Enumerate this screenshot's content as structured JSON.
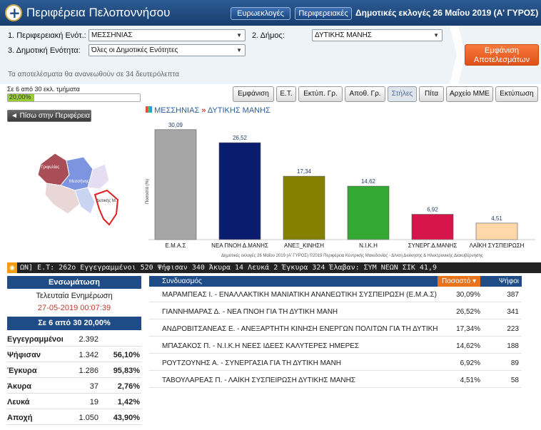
{
  "header": {
    "region_title": "Περιφέρεια Πελοποννήσου",
    "btn_euro": "Ευρωεκλογές",
    "btn_regional": "Περιφερειακές",
    "elections_title": "Δημοτικές εκλογές 26 Μαΐου 2019 (Α' ΓΥΡΟΣ)"
  },
  "filters": {
    "unit_label": "1. Περιφερειακή Ενότ.:",
    "unit_value": "ΜΕΣΣΗΝΙΑΣ",
    "municipality_label": "2. Δήμος:",
    "municipality_value": "ΔΥΤΙΚΗΣ ΜΑΝΗΣ",
    "district_label": "3. Δημοτική Ενότητα:",
    "district_value": "Όλες οι Δημοτικές Ενότητες",
    "show_button": "Εμφάνιση Αποτελεσμάτων",
    "refresh_note": "Τα αποτελέσματα θα ανανεωθούν σε 34 δευτερόλεπτα"
  },
  "progress": {
    "label": "Σε 6 από 30 εκλ. τμήματα",
    "text": "20,00%",
    "fraction": 0.2
  },
  "tabs": [
    "Εμφάνιση",
    "Ε.Τ.",
    "Εκτύπ. Γρ.",
    "Αποθ. Γρ.",
    "Στήλες",
    "Πίτα",
    "Αρχείο ΜΜΕ",
    "Εκτύπωση"
  ],
  "nav": {
    "back": "◄ Πίσω στην Περιφέρεια",
    "crumb_unit": "ΜΕΣΣΗΝΙΑΣ",
    "crumb_sep": "»",
    "crumb_mun": "ΔΥΤΙΚΗΣ ΜΑΝΗΣ"
  },
  "map": {
    "labels": [
      "Τριφυλίας",
      "Μεσσήνης",
      "Δυτικής Μ."
    ]
  },
  "chart_data": {
    "type": "bar",
    "categories": [
      "Ε.Μ.Α.Σ",
      "ΝΕΑ ΠΝΟΗ Δ.ΜΑΝΗΣ",
      "ΑΝΕΞ_ΚΙΝΗΣΗ",
      "Ν.Ι.Κ.Η",
      "ΣΥΝΕΡΓ.Δ.ΜΑΝΗΣ",
      "ΛΑΪΚΗ ΣΥΣΠΕΙΡΩΣΗ"
    ],
    "values": [
      30.09,
      26.52,
      17.34,
      14.62,
      6.92,
      4.51
    ],
    "value_labels": [
      "30,09",
      "26,52",
      "17,34",
      "14,62",
      "6,92",
      "4,51"
    ],
    "colors": [
      "#a6a6a6",
      "#0a1c6e",
      "#858000",
      "#33a833",
      "#d6154a",
      "#fed8a8"
    ],
    "ylabel": "Ποσοστό (%)",
    "ylim": [
      0,
      32
    ]
  },
  "chart_footer": "Δημοτικές εκλογές 26 Μαΐου 2019 (Α' ΓΥΡΟΣ) ©2019 Περιφέρεια Κεντρικής Μακεδονίας - Δ/νση Διοίκησης & Ηλεκτρονικής Διακυβέρνησης",
  "ticker": "ΩΝ] Ε.Τ: 262ο Εγγεγραμμένοι 520 Ψήφισαν 340 Άκυρα 14 Λευκά 2 Έγκυρα 324 Έλαβαν: ΣΥΜ ΝΕΩΝ ΣΙΚ 41,9",
  "summary": {
    "header": "Ενσωμάτωση",
    "last_update_label": "Τελευταία Ενημέρωση",
    "last_update": "27-05-2019 00:07:39",
    "counted": "Σε 6 από 30    20,00%",
    "stats": [
      {
        "k": "Εγγεγραμμένοι",
        "v": "2.392",
        "p": ""
      },
      {
        "k": "Ψήφισαν",
        "v": "1.342",
        "p": "56,10%"
      },
      {
        "k": "Έγκυρα",
        "v": "1.286",
        "p": "95,83%"
      },
      {
        "k": "Άκυρα",
        "v": "37",
        "p": "2,76%"
      },
      {
        "k": "Λευκά",
        "v": "19",
        "p": "1,42%"
      },
      {
        "k": "Αποχή",
        "v": "1.050",
        "p": "43,90%"
      }
    ]
  },
  "results": {
    "col_party": "Συνδυασμός",
    "col_pct": "Ποσοστό",
    "col_votes": "Ψήφοι",
    "rows": [
      {
        "name": "ΜΑΡΑΜΠΕΑΣ Ι. - ΕΝΑΛΛΑΚΤΙΚΗ ΜΑΝΙΑΤΙΚΗ ΑΝΑΝΕΩΤΙΚΗ ΣΥΣΠΕΙΡΩΣΗ (Ε.Μ.Α.Σ)",
        "pct": "30,09%",
        "votes": "387"
      },
      {
        "name": "ΓΙΑΝΝΗΜΑΡΑΣ Δ. - ΝΕΑ ΠΝΟΗ ΓΙΑ ΤΗ ΔΥΤΙΚΗ ΜΑΝΗ",
        "pct": "26,52%",
        "votes": "341"
      },
      {
        "name": "ΑΝΔΡΟΒΙΤΣΑΝΕΑΣ Ε. - ΑΝΕΞΑΡΤΗΤΗ ΚΙΝΗΣΗ ΕΝΕΡΓΩΝ ΠΟΛΙΤΩΝ ΓΙΑ ΤΗ ΔΥΤΙΚΗ ΜΑΝΗ",
        "pct": "17,34%",
        "votes": "223"
      },
      {
        "name": "ΜΠΑΣΑΚΟΣ Π. - Ν.Ι.Κ.Η ΝΕΕΣ ΙΔΕΕΣ ΚΑΛΥΤΕΡΕΣ ΗΜΕΡΕΣ",
        "pct": "14,62%",
        "votes": "188"
      },
      {
        "name": "ΡΟΥΤΖΟΥΝΗΣ Α. - ΣΥΝΕΡΓΑΣΙΑ ΓΙΑ ΤΗ ΔΥΤΙΚΗ ΜΑΝΗ",
        "pct": "6,92%",
        "votes": "89"
      },
      {
        "name": "ΤΑΒΟΥΛΑΡΕΑΣ Π. - ΛΑΪΚΗ ΣΥΣΠΕΙΡΩΣΗ ΔΥΤΙΚΗΣ ΜΑΝΗΣ",
        "pct": "4,51%",
        "votes": "58"
      }
    ]
  }
}
